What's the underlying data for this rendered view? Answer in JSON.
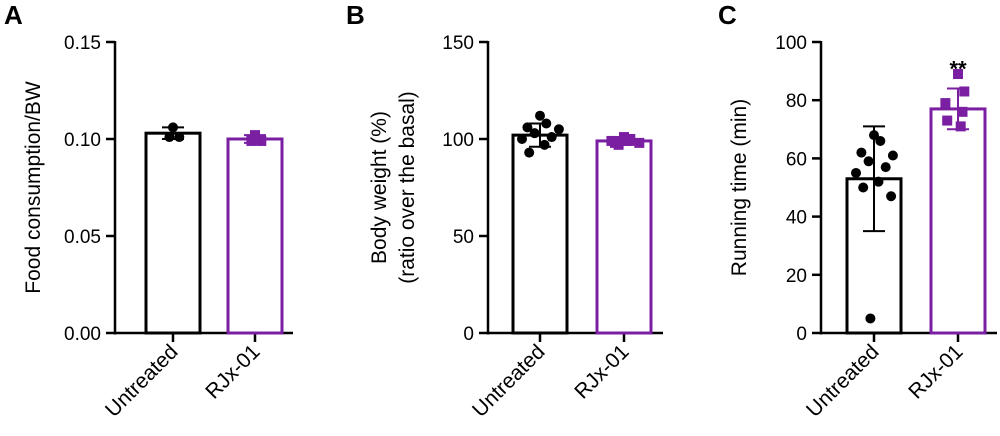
{
  "chart_data": [
    {
      "type": "bar",
      "panel": "A",
      "ylabel": "Food consumption/BW",
      "ylim": [
        0,
        0.15
      ],
      "yticks": [
        "0.00",
        "0.05",
        "0.10",
        "0.15"
      ],
      "categories": [
        "Untreated",
        "RJx-01"
      ],
      "series": [
        {
          "category": "Untreated",
          "mean": 0.103,
          "sd": 0.003,
          "color": "#000000",
          "marker": "circle",
          "points": [
            0.106,
            0.101,
            0.101
          ]
        },
        {
          "category": "RJx-01",
          "mean": 0.1,
          "sd": 0.002,
          "color": "#7a1fa2",
          "marker": "square",
          "points": [
            0.102,
            0.099,
            0.099
          ]
        }
      ],
      "annotation": ""
    },
    {
      "type": "bar",
      "panel": "B",
      "ylabel": "Body weight (%)",
      "ylabel2": "(ratio over the basal)",
      "ylim": [
        0,
        150
      ],
      "yticks": [
        "0",
        "50",
        "100",
        "150"
      ],
      "categories": [
        "Untreated",
        "RJx-01"
      ],
      "series": [
        {
          "category": "Untreated",
          "mean": 102,
          "sd": 6,
          "color": "#000000",
          "marker": "circle",
          "points": [
            112,
            108,
            106,
            105,
            103,
            101,
            100,
            97,
            93
          ]
        },
        {
          "category": "RJx-01",
          "mean": 99,
          "sd": 2,
          "color": "#7a1fa2",
          "marker": "square",
          "points": [
            101,
            100,
            99,
            99,
            98,
            98,
            97
          ]
        }
      ],
      "annotation": ""
    },
    {
      "type": "bar",
      "panel": "C",
      "ylabel": "Running time (min)",
      "ylim": [
        0,
        100
      ],
      "yticks": [
        "0",
        "20",
        "40",
        "60",
        "80",
        "100"
      ],
      "categories": [
        "Untreated",
        "RJx-01"
      ],
      "series": [
        {
          "category": "Untreated",
          "mean": 53,
          "sd": 18,
          "color": "#000000",
          "marker": "circle",
          "points": [
            68,
            66,
            62,
            61,
            59,
            57,
            55,
            52,
            50,
            47,
            5
          ]
        },
        {
          "category": "RJx-01",
          "mean": 77,
          "sd": 7,
          "color": "#7a1fa2",
          "marker": "square",
          "points": [
            89,
            83,
            79,
            76,
            73,
            71
          ]
        }
      ],
      "annotation": "**"
    }
  ]
}
